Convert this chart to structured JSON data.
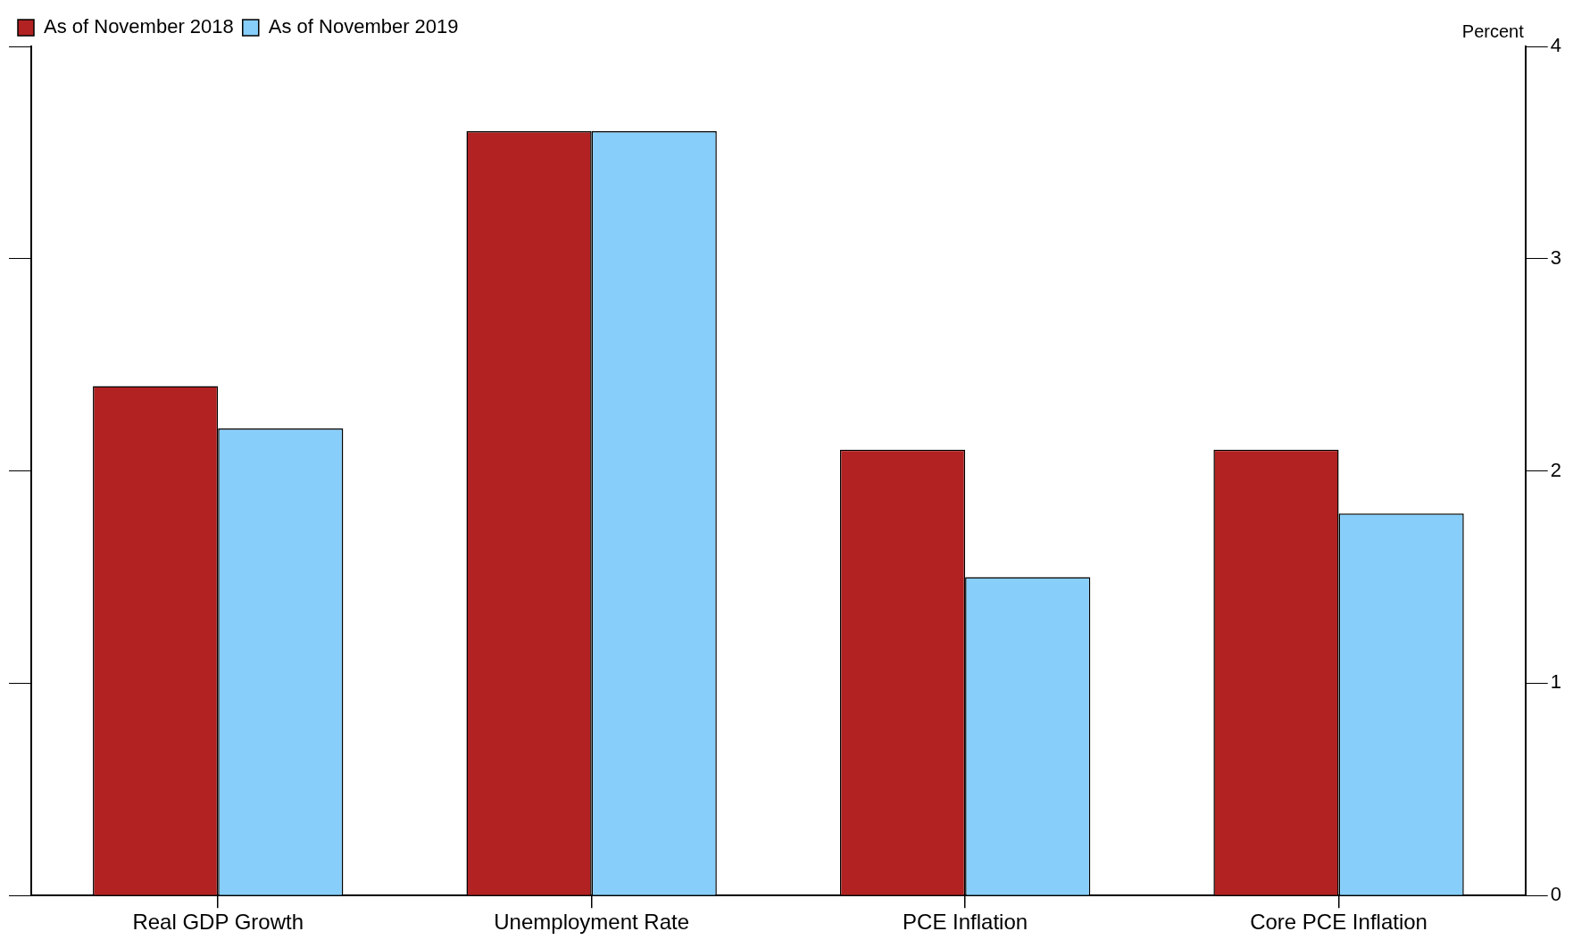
{
  "chart_data": {
    "type": "bar",
    "ylabel": "Percent",
    "categories": [
      "Real GDP Growth",
      "Unemployment Rate",
      "PCE Inflation",
      "Core PCE Inflation"
    ],
    "series": [
      {
        "name": "As of November 2018",
        "color": "#b22222",
        "values": [
          2.4,
          3.6,
          2.1,
          2.1
        ]
      },
      {
        "name": "As of November 2019",
        "color": "#87cefa",
        "values": [
          2.2,
          3.6,
          1.5,
          1.8
        ]
      }
    ],
    "ylim": [
      0,
      4
    ],
    "yticks": [
      0,
      1,
      2,
      3,
      4
    ],
    "grid": false,
    "legend": "top left"
  }
}
